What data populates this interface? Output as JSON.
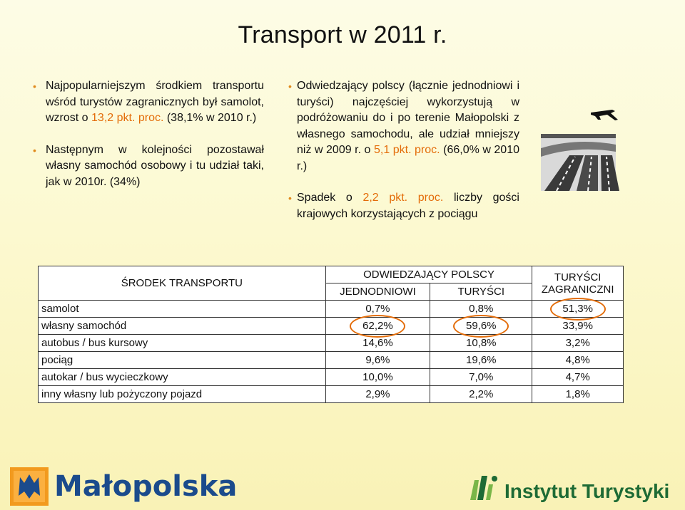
{
  "title": "Transport w 2011 r.",
  "left_column": {
    "p1_a": "Najpopularniejszym środkiem transportu wśród turystów zagranicznych był samolot, wzrost o ",
    "p1_hl": "13,2 pkt. proc.",
    "p1_b": " (38,1% w 2010 r.)",
    "p2": "Następnym w kolejności pozostawał własny samochód osobowy i tu udział taki, jak w 2010r. (34%)"
  },
  "mid_column": {
    "p1_a": "Odwiedzający polscy (łącznie jednodniowi i turyści) najczęściej wykorzystują w podróżowaniu do i po terenie Małopolski z własnego samochodu, ale udział mniejszy niż w 2009 r. o ",
    "p1_hl": "5,1 pkt. proc.",
    "p1_b": " (66,0% w 2010 r.)",
    "p2_a": "Spadek o ",
    "p2_hl": "2,2 pkt. proc.",
    "p2_b": " liczby gości krajowych korzystających z pociągu"
  },
  "table": {
    "header_transport": "ŚRODEK TRANSPORTU",
    "header_polish": "ODWIEDZAJĄCY POLSCY",
    "header_oneday": "JEDNODNIOWI",
    "header_tourists": "TURYŚCI",
    "header_foreign": "TURYŚCI ZAGRANICZNI",
    "rows": [
      {
        "name": "samolot",
        "oneday": "0,7%",
        "tourists": "0,8%",
        "foreign": "51,3%"
      },
      {
        "name": "własny samochód",
        "oneday": "62,2%",
        "tourists": "59,6%",
        "foreign": "33,9%"
      },
      {
        "name": "autobus / bus kursowy",
        "oneday": "14,6%",
        "tourists": "10,8%",
        "foreign": "3,2%"
      },
      {
        "name": "pociąg",
        "oneday": "9,6%",
        "tourists": "19,6%",
        "foreign": "4,8%"
      },
      {
        "name": "autokar / bus wycieczkowy",
        "oneday": "10,0%",
        "tourists": "7,0%",
        "foreign": "4,7%"
      },
      {
        "name": "inny własny lub pożyczony pojazd",
        "oneday": "2,9%",
        "tourists": "2,2%",
        "foreign": "1,8%"
      }
    ]
  },
  "footer": {
    "logo_left": "Małopolska",
    "logo_right": "Instytut Turystyki"
  },
  "colors": {
    "accent": "#e36c09",
    "malopolska_blue": "#1b4b8c",
    "instytut_green": "#1e6b35"
  }
}
